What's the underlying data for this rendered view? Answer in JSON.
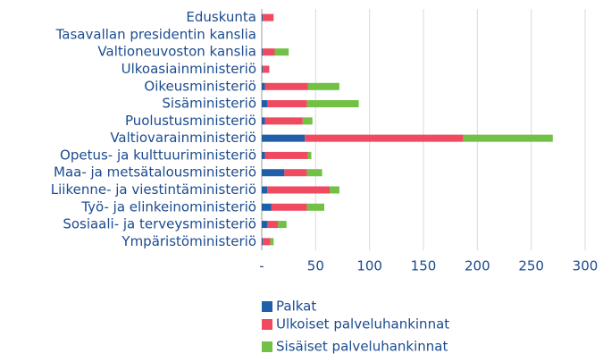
{
  "chart_data": {
    "type": "bar",
    "orientation": "horizontal",
    "stacked": true,
    "categories": [
      "Eduskunta",
      "Tasavallan presidentin kanslia",
      "Valtioneuvoston kanslia",
      "Ulkoasiainministeriö",
      "Oikeusministeriö",
      "Sisäministeriö",
      "Puolustusministeriö",
      "Valtiovarainministeriö",
      "Opetus- ja kulttuuriministeriö",
      "Maa- ja metsätalousministeriö",
      "Liikenne- ja viestintäministeriö",
      "Työ- ja elinkeinoministeriö",
      "Sosiaali- ja terveysministeriö",
      "Ympäristöministeriö"
    ],
    "series": [
      {
        "name": "Palkat",
        "color": "#1f5ea8",
        "values": [
          1,
          0,
          1,
          1,
          3,
          5,
          3,
          40,
          3,
          21,
          5,
          9,
          5,
          1
        ]
      },
      {
        "name": "Ulkoiset palveluhankinnat",
        "color": "#ef4a60",
        "values": [
          10,
          0,
          11,
          6,
          40,
          37,
          35,
          147,
          40,
          21,
          58,
          33,
          10,
          7
        ]
      },
      {
        "name": "Sisäiset palveluhankinnat",
        "color": "#72c044",
        "values": [
          0,
          0,
          13,
          0,
          29,
          48,
          9,
          83,
          3,
          14,
          9,
          16,
          8,
          3
        ]
      }
    ],
    "xlim": [
      0,
      300
    ],
    "xticks": [
      {
        "value": 0,
        "label": "-"
      },
      50,
      100,
      150,
      200,
      250,
      300
    ],
    "grid": true
  }
}
